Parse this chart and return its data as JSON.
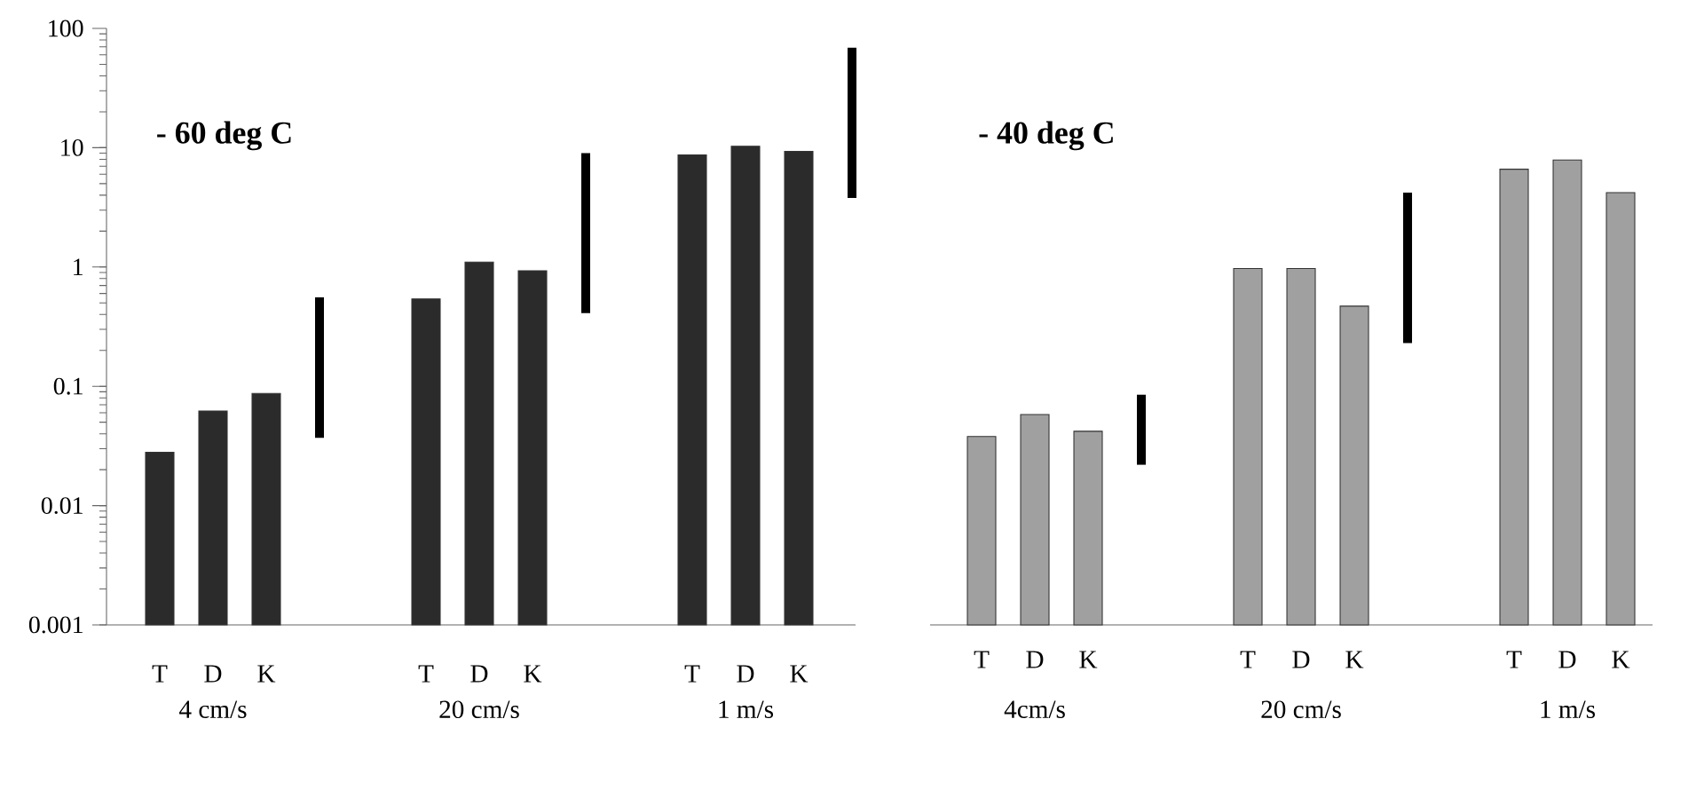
{
  "chart_data": [
    {
      "type": "bar",
      "title": "- 60 deg C",
      "log": "y",
      "categories": [
        "T",
        "D",
        "K",
        null,
        null,
        "T",
        "D",
        "K",
        null,
        null,
        "T",
        "D",
        "K",
        null
      ],
      "series": [
        {
          "color": "#2b2b2b",
          "values": [
            0.028,
            0.062,
            0.087,
            null,
            null,
            0.54,
            1.1,
            0.93,
            null,
            null,
            8.7,
            10.3,
            9.3,
            null
          ]
        },
        {
          "type": "bar",
          "color": "#000000",
          "base": [
            null,
            null,
            null,
            0.037,
            null,
            null,
            null,
            null,
            0.41,
            null,
            null,
            null,
            null,
            3.8
          ],
          "values": [
            null,
            null,
            null,
            0.52,
            null,
            null,
            null,
            null,
            8.6,
            null,
            null,
            null,
            null,
            65
          ]
        }
      ],
      "ylim": [
        0.001,
        100
      ],
      "yticks": [
        0.001,
        0.01,
        0.1,
        1,
        10,
        100
      ],
      "annotations": [
        "4 cm/s",
        "20 cm/s",
        "1 m/s"
      ]
    },
    {
      "type": "bar",
      "title": "- 40 deg C",
      "log": "y",
      "tick_labels": "x",
      "categories": [
        "T",
        "D",
        "K",
        null,
        null,
        "T",
        "D",
        "K",
        null,
        null,
        "T",
        "D",
        "K"
      ],
      "series": [
        {
          "color": "#a0a0a0",
          "values": [
            0.038,
            0.058,
            0.042,
            null,
            null,
            0.97,
            0.97,
            0.47,
            null,
            null,
            6.6,
            7.9,
            4.2
          ]
        },
        {
          "type": "bar",
          "color": "#000000",
          "base": [
            null,
            null,
            null,
            0.022,
            null,
            null,
            null,
            null,
            0.23,
            null,
            null,
            null,
            null
          ],
          "values": [
            null,
            null,
            null,
            0.063,
            null,
            null,
            null,
            null,
            3.97,
            null,
            null,
            null,
            null
          ]
        }
      ],
      "ylim": [
        0.001,
        100
      ],
      "yticks": [
        0.001,
        0.01,
        0.1,
        1,
        10,
        100
      ],
      "annotations": [
        "4cm/s",
        "20 cm/s",
        "1 m/s"
      ]
    }
  ]
}
